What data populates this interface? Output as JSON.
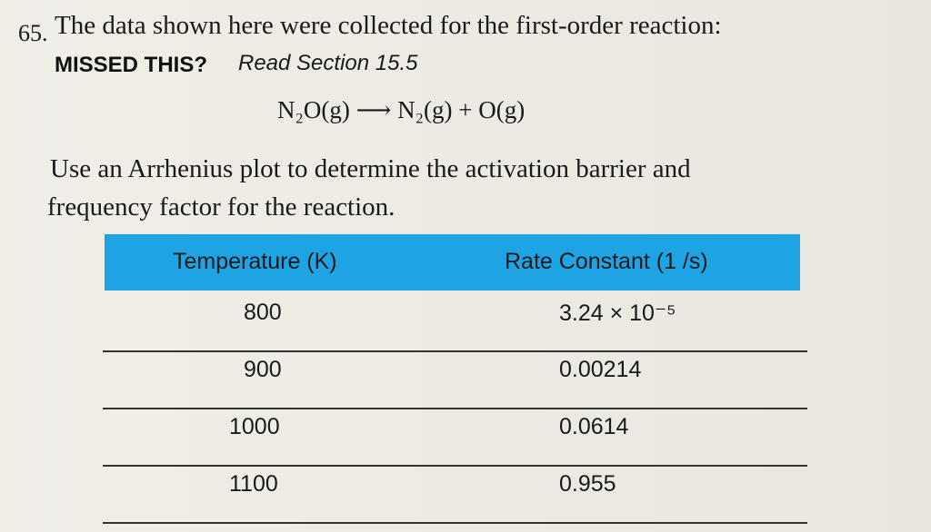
{
  "problem": {
    "number": "65.",
    "text": "The data shown here were collected for the first-order reaction:",
    "missed": "MISSED THIS?",
    "read": "Read Section 15.5",
    "equation": "N₂O(g) ⟶ N₂(g) + O(g)",
    "question": [
      "Use an Arrhenius plot to determine the activation barrier and",
      "frequency factor for the reaction."
    ]
  },
  "table": {
    "headers": [
      "Temperature (K)",
      "Rate Constant (1 /s)"
    ],
    "rows": [
      [
        "800",
        "3.24 × 10⁻⁵"
      ],
      [
        "900",
        "0.00214"
      ],
      [
        "1000",
        "0.0614"
      ],
      [
        "1100",
        "0.955"
      ]
    ]
  }
}
